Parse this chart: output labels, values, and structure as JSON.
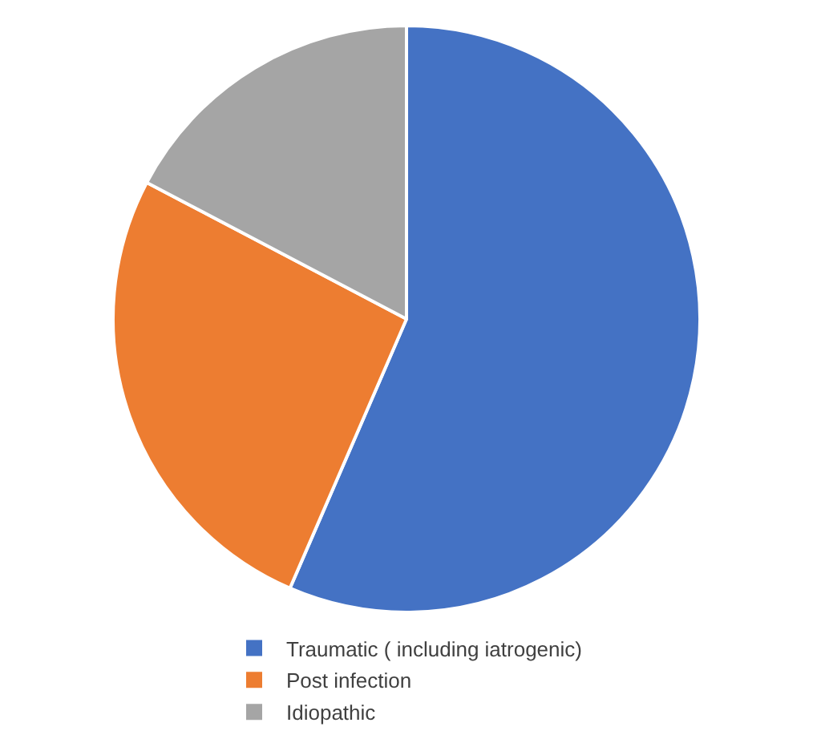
{
  "chart_data": {
    "type": "pie",
    "categories": [
      "Traumatic ( including iatrogenic)",
      "Post infection",
      "Idiopathic"
    ],
    "values": [
      56.5,
      26.2,
      17.3
    ],
    "colors": [
      "#4472c4",
      "#ed7d31",
      "#a5a5a5"
    ],
    "legend": "bottom"
  }
}
